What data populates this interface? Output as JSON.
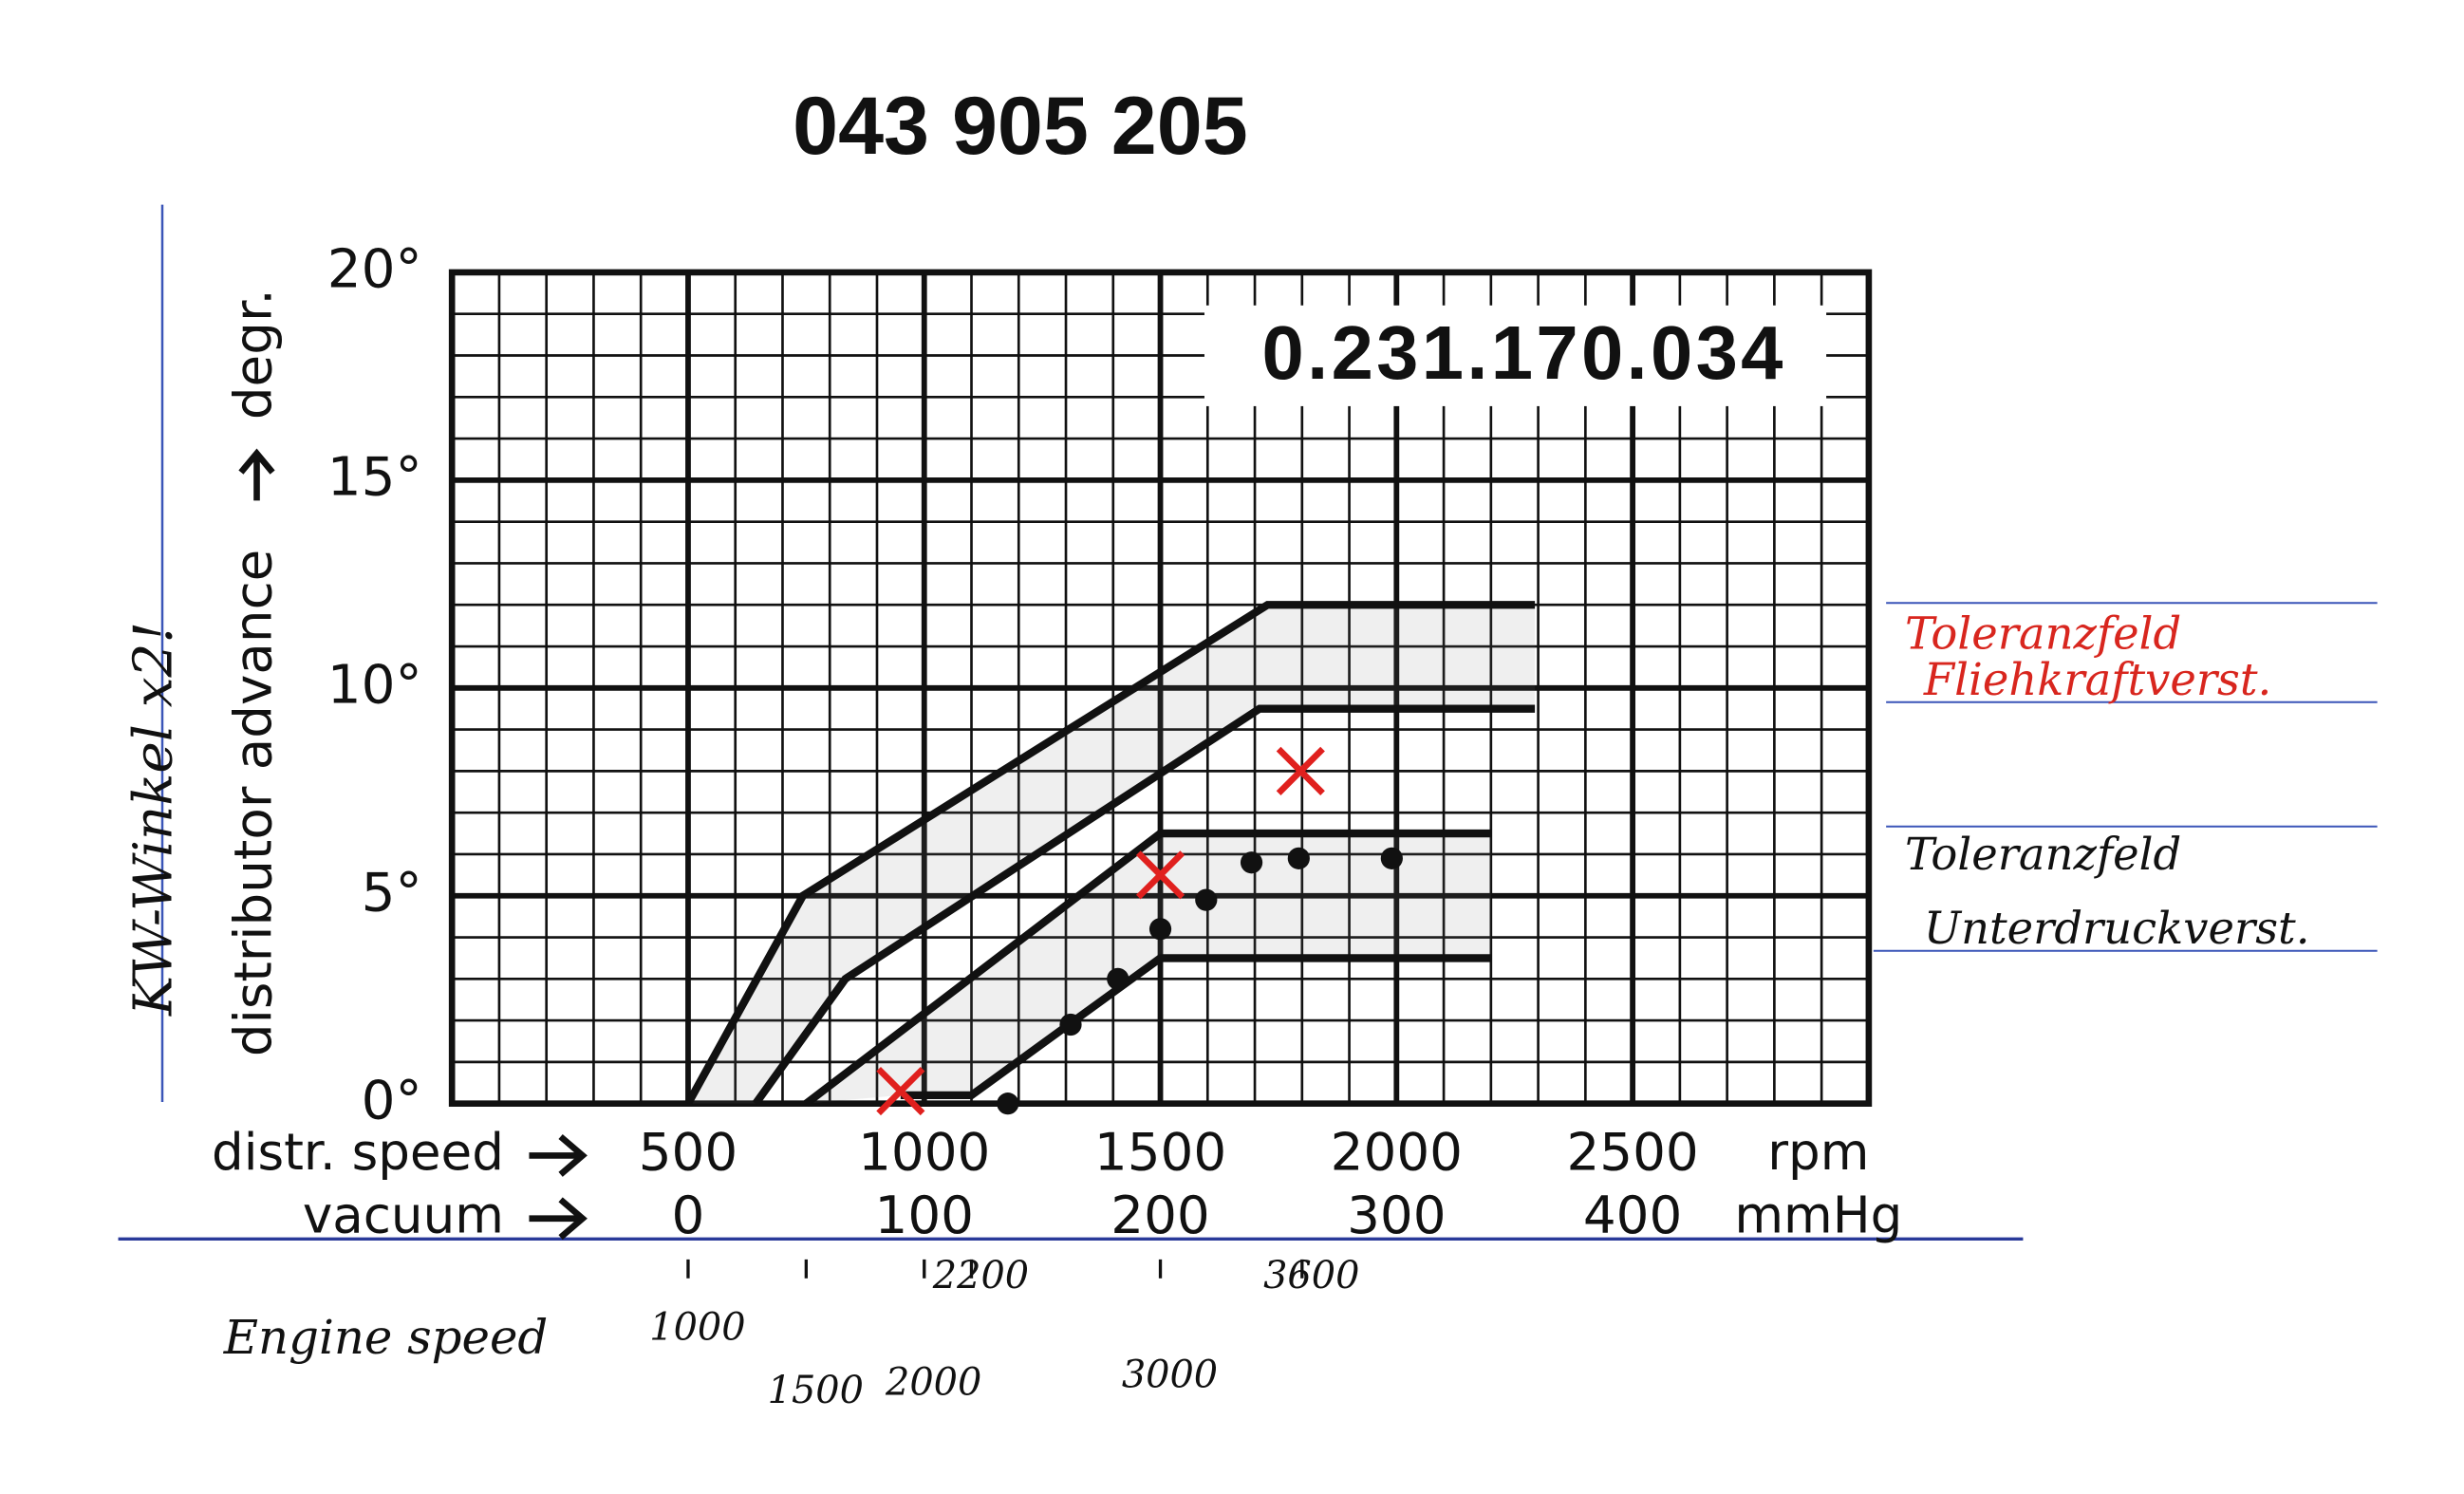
{
  "chart_data": {
    "type": "line",
    "title": "043 905 205",
    "part_number": "0.231.170.034",
    "y_label": "distributor advance",
    "y_unit": "degr.",
    "x_label": "distr. speed",
    "x_unit": "rpm",
    "x2_label": "vacuum",
    "x2_unit": "mmHg",
    "xlim": [
      0,
      3000
    ],
    "xticks": [
      500,
      1000,
      1500,
      2000,
      2500
    ],
    "x2lim": [
      -100,
      500
    ],
    "x2ticks": [
      0,
      100,
      200,
      300,
      400
    ],
    "ylim": [
      0,
      20
    ],
    "yticks": [
      {
        "value": 0,
        "label": "0°"
      },
      {
        "value": 5,
        "label": "5°"
      },
      {
        "value": 10,
        "label": "10°"
      },
      {
        "value": 15,
        "label": "15°"
      },
      {
        "value": 20,
        "label": "20°"
      }
    ],
    "grid": true,
    "minor_grid_x": 100,
    "minor_grid_y": 1,
    "bands": [
      {
        "label_lines": [
          "Toleranzfeld",
          "Fliehkraftverst."
        ],
        "label_color": "#d8261e",
        "color": "#111111",
        "upper": {
          "x": [
            500,
            743,
            1727,
            2293
          ],
          "y": [
            0,
            5,
            12,
            12
          ]
        },
        "lower": {
          "x": [
            643,
            833,
            1710,
            2293
          ],
          "y": [
            0,
            3,
            9.5,
            9.5
          ]
        }
      },
      {
        "label_lines": [
          "Toleranzfeld",
          "Unterdruckverst."
        ],
        "label_color": "#111111",
        "color": "#111111",
        "upper": {
          "x": [
            750,
            1500,
            2200
          ],
          "y": [
            0,
            6.5,
            6.5
          ]
        },
        "lower": {
          "x": [
            950,
            1100,
            1500,
            2200
          ],
          "y": [
            0.2,
            0.2,
            3.5,
            3.5
          ]
        }
      }
    ],
    "measured": {
      "color": "#111111",
      "x": [
        1177,
        1310,
        1410,
        1500,
        1597,
        1693,
        1793,
        1990
      ],
      "y": [
        0,
        1.9,
        3,
        4.2,
        4.9,
        5.8,
        5.9,
        5.9
      ]
    },
    "checkpoints": {
      "color": "#e0201e",
      "x": [
        950,
        1500,
        1797
      ],
      "y": [
        0.3,
        5.5,
        8
      ]
    },
    "note": "KW-Winkel x2!",
    "engine_speed_label": "Engine speed",
    "engine_speed_ticks": [
      {
        "value": 500,
        "label": "1000"
      },
      {
        "value": 750,
        "label": "1500"
      },
      {
        "value": 1000,
        "label": "2000"
      },
      {
        "value": 1100,
        "label": "2200"
      },
      {
        "value": 1500,
        "label": "3000"
      },
      {
        "value": 1800,
        "label": "3600"
      }
    ]
  }
}
